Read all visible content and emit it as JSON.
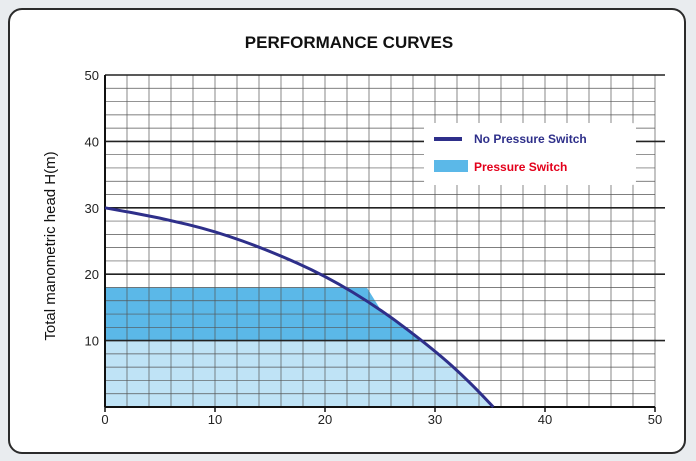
{
  "chart_data": {
    "type": "area",
    "title": "PERFORMANCE CURVES",
    "xlabel": "",
    "ylabel": "Total manometric head H(m)",
    "xlim": [
      0,
      50
    ],
    "ylim": [
      0,
      50
    ],
    "x_ticks": [
      0,
      10,
      20,
      30,
      40,
      50
    ],
    "y_ticks": [
      10,
      20,
      30,
      40,
      50
    ],
    "grid": true,
    "legend_position": "top-right",
    "series": [
      {
        "name": "No Pressure Switch",
        "kind": "line",
        "color": "#2e2f8a",
        "label_color": "#2e2f8a",
        "x": [
          0,
          5,
          10,
          15,
          20,
          25,
          30,
          33,
          35.3
        ],
        "y": [
          30,
          28.5,
          26.5,
          23.5,
          19.8,
          14.8,
          8.5,
          4,
          0
        ]
      },
      {
        "name": "Pressure Switch",
        "kind": "area",
        "color": "#5bb8e8",
        "label_color": "#e3001b",
        "x": [
          0,
          5,
          10,
          15,
          20,
          23.8,
          25,
          30,
          33,
          35.3
        ],
        "y": [
          18,
          18,
          18,
          18,
          18,
          18,
          14.8,
          8.5,
          4,
          0
        ]
      }
    ]
  }
}
